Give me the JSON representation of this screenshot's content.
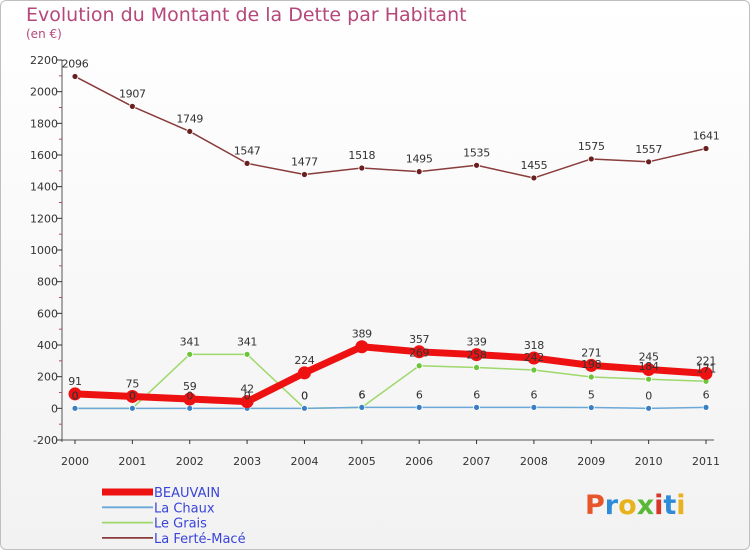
{
  "title": "Evolution du Montant de la Dette par Habitant",
  "subtitle": "(en €)",
  "logo_text": "Proxiti",
  "logo_colors": [
    "#e8552a",
    "#2e8bd8",
    "#e8b21c",
    "#5ab838",
    "#d8362b",
    "#2e8bd8",
    "#e8b21c"
  ],
  "chart_data": {
    "type": "line",
    "title": "Evolution du Montant de la Dette par Habitant",
    "subtitle": "(en €)",
    "x": [
      "2000",
      "2001",
      "2002",
      "2003",
      "2004",
      "2005",
      "2006",
      "2007",
      "2008",
      "2009",
      "2010",
      "2011"
    ],
    "ylim": [
      -200,
      2200
    ],
    "yticks": [
      -200,
      0,
      200,
      400,
      600,
      800,
      1000,
      1200,
      1400,
      1600,
      1800,
      2000,
      2200
    ],
    "grid": false,
    "legend_position": "bottom-left",
    "series": [
      {
        "name": "BEAUVAIN",
        "color": "#ee1111",
        "values": [
          91,
          75,
          59,
          42,
          224,
          389,
          357,
          339,
          318,
          271,
          245,
          221
        ],
        "labels": [
          "91",
          "75",
          "59",
          "42",
          "224",
          "389",
          "357",
          "339",
          "318",
          "271",
          "245",
          "221"
        ]
      },
      {
        "name": "La Chaux",
        "color": "#6aa8d8",
        "values": [
          0,
          0,
          0,
          0,
          0,
          6,
          6,
          6,
          6,
          5,
          0,
          6
        ],
        "labels": [
          "0",
          "0",
          "0",
          "0",
          "0",
          "6",
          "6",
          "6",
          "6",
          "5",
          "0",
          "6"
        ]
      },
      {
        "name": "Le Grais",
        "color": "#9ed86a",
        "values": [
          0,
          0,
          341,
          341,
          0,
          6,
          269,
          258,
          242,
          198,
          184,
          171
        ],
        "labels": [
          "0",
          "0",
          "341",
          "341",
          "0",
          "6",
          "269",
          "258",
          "242",
          "198",
          "184",
          "171"
        ]
      },
      {
        "name": "La Ferté-Macé",
        "color": "#8a3b3b",
        "values": [
          2096,
          1907,
          1749,
          1547,
          1477,
          1518,
          1495,
          1535,
          1455,
          1575,
          1557,
          1641
        ],
        "labels": [
          "2096",
          "1907",
          "1749",
          "1547",
          "1477",
          "1518",
          "1495",
          "1535",
          "1455",
          "1575",
          "1557",
          "1641"
        ]
      }
    ]
  }
}
